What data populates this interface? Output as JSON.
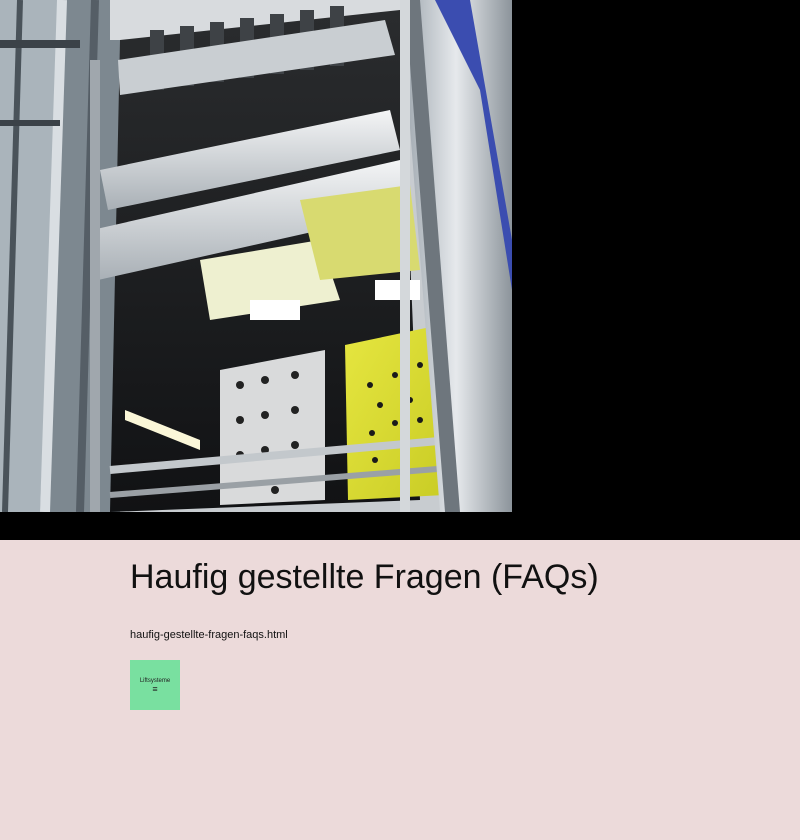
{
  "hero": {
    "image_description_icon": "elevator-shaft-photo"
  },
  "main": {
    "title": "Haufig gestellte Fragen (FAQs)",
    "file_link": "haufig-gestellte-fragen-faqs.html"
  },
  "badge": {
    "label": "Liftsysteme",
    "icon": "≡",
    "color": "#79e0a0"
  },
  "colors": {
    "background": "#ecdada",
    "hero_background": "#000000"
  }
}
